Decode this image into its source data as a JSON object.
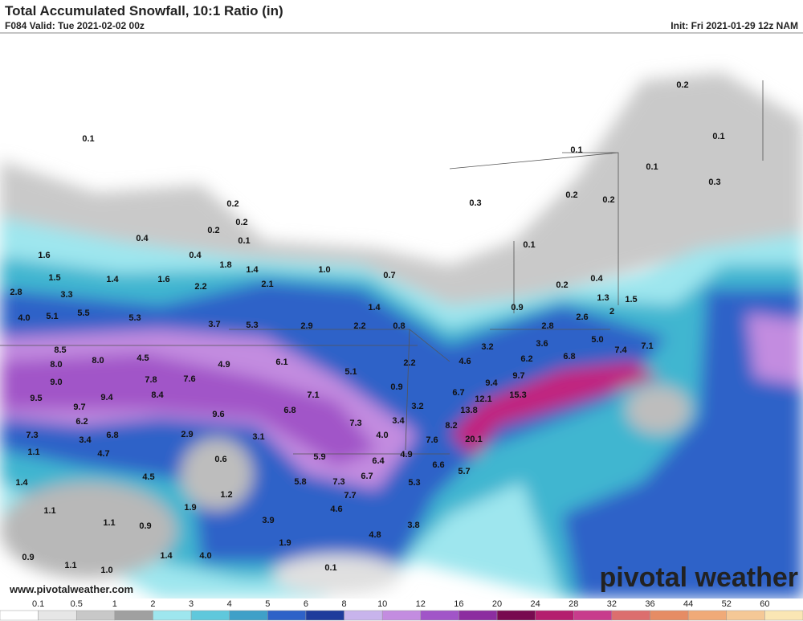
{
  "header": {
    "title": "Total Accumulated Snowfall, 10:1 Ratio (in)",
    "valid": "F084 Valid: Tue 2021-02-02 00z",
    "init": "Init: Fri 2021-01-29 12z NAM"
  },
  "map": {
    "labels": [
      "0.1",
      "0.2",
      "0.2",
      "0.2",
      "0.1",
      "0.4",
      "0.4",
      "1.6",
      "1.8",
      "1.4",
      "1.0",
      "0.7",
      "1.5",
      "1.4",
      "1.6",
      "2.2",
      "2.1",
      "2.8",
      "3.3",
      "4.0",
      "5.1",
      "5.5",
      "5.3",
      "1.4",
      "3.7",
      "5.3",
      "2.9",
      "2.2",
      "0.8",
      "8.5",
      "8.0",
      "4.5",
      "8.0",
      "6.1",
      "4.9",
      "5.1",
      "2.2",
      "0.9",
      "7.8",
      "7.6",
      "9.0",
      "7.1",
      "9.5",
      "9.7",
      "9.4",
      "8.4",
      "6.8",
      "9.6",
      "3.2",
      "3.4",
      "7.3",
      "6.2",
      "4.0",
      "3.1",
      "2.9",
      "7.3",
      "3.4",
      "6.8",
      "4.7",
      "1.1",
      "0.6",
      "5.9",
      "6.4",
      "4.9",
      "6.6",
      "5.3",
      "6.7",
      "7.3",
      "5.8",
      "4.5",
      "1.4",
      "1.2",
      "7.7",
      "4.6",
      "1.9",
      "1.1",
      "0.9",
      "1.1",
      "3.9",
      "3.8",
      "4.8",
      "1.9",
      "1.4",
      "4.0",
      "0.9",
      "1.1",
      "1.0",
      "0.1",
      "0.2",
      "0.1",
      "0.1",
      "0.1",
      "0.2",
      "0.2",
      "0.3",
      "0.3",
      "0.1",
      "0.2",
      "0.4",
      "1.3",
      "1.5",
      "2",
      "0.9",
      "2.8",
      "2.6",
      "3.2",
      "3.6",
      "5.0",
      "7.4",
      "7.1",
      "6.2",
      "6.8",
      "4.6",
      "9.4",
      "9.7",
      "6.7",
      "12.1",
      "15.3",
      "13.8",
      "8.2",
      "7.6",
      "20.1",
      "5.7"
    ]
  },
  "colorbar": {
    "ticks": [
      "0.1",
      "0.5",
      "1",
      "2",
      "3",
      "4",
      "5",
      "6",
      "8",
      "10",
      "12",
      "16",
      "20",
      "24",
      "28",
      "32",
      "36",
      "44",
      "52",
      "60"
    ]
  },
  "footer": {
    "website": "www.pivotalweather.com",
    "logo": "pivotal weather"
  }
}
